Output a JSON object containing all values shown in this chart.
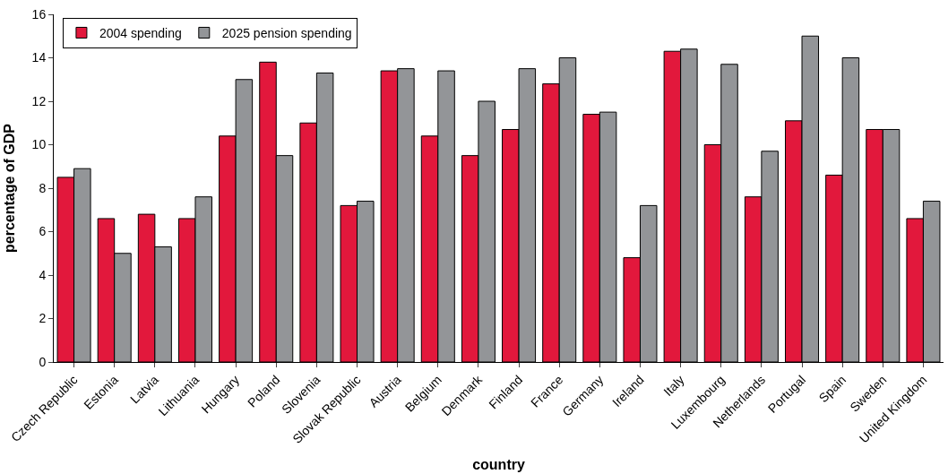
{
  "chart_data": {
    "type": "bar",
    "xlabel": "country",
    "ylabel": "percentage of GDP",
    "categories": [
      "Czech Republic",
      "Estonia",
      "Latvia",
      "Lithuania",
      "Hungary",
      "Poland",
      "Slovenia",
      "Slovak Republic",
      "Austria",
      "Belgium",
      "Denmark",
      "Finland",
      "France",
      "Germany",
      "Ireland",
      "Italy",
      "Luxembourg",
      "Netherlands",
      "Portugal",
      "Spain",
      "Sweden",
      "United Kingdom"
    ],
    "series": [
      {
        "name": "2004 spending",
        "color": "#e2183c",
        "values": [
          8.5,
          6.6,
          6.8,
          6.6,
          10.4,
          13.8,
          11.0,
          7.2,
          13.4,
          10.4,
          9.5,
          10.7,
          12.8,
          11.4,
          4.8,
          14.3,
          10.0,
          7.6,
          11.1,
          8.6,
          10.7,
          6.6
        ]
      },
      {
        "name": "2025 pension spending",
        "color": "#939598",
        "values": [
          8.9,
          5.0,
          5.3,
          7.6,
          13.0,
          9.5,
          13.3,
          7.4,
          13.5,
          13.4,
          12.0,
          13.5,
          14.0,
          11.5,
          7.2,
          14.4,
          13.7,
          9.7,
          15.0,
          14.0,
          10.7,
          7.4
        ]
      }
    ],
    "ylim": [
      0,
      16
    ],
    "yticks": [
      0,
      2,
      4,
      6,
      8,
      10,
      12,
      14,
      16
    ],
    "legend": "top left"
  }
}
